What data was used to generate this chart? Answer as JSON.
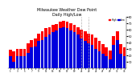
{
  "title": "Milwaukee Weather Dew Point",
  "subtitle": "Daily High/Low",
  "high_values": [
    28,
    26,
    30,
    30,
    30,
    38,
    44,
    46,
    54,
    57,
    62,
    64,
    67,
    69,
    72,
    74,
    72,
    70,
    67,
    64,
    60,
    57,
    54,
    52,
    47,
    42,
    37,
    32,
    27,
    50,
    57,
    37,
    32
  ],
  "low_values": [
    18,
    10,
    18,
    18,
    18,
    24,
    32,
    34,
    42,
    44,
    49,
    52,
    56,
    58,
    62,
    64,
    62,
    59,
    56,
    52,
    46,
    42,
    38,
    36,
    30,
    26,
    22,
    18,
    14,
    36,
    44,
    22,
    18
  ],
  "high_color": "#ff0000",
  "low_color": "#0000dd",
  "background_color": "#ffffff",
  "ylim": [
    0,
    80
  ],
  "yticks": [
    10,
    20,
    30,
    40,
    50,
    60,
    70,
    80
  ],
  "bar_width": 0.85,
  "legend_high": "High",
  "legend_low": "Low",
  "dashed_lines": [
    20,
    22
  ]
}
